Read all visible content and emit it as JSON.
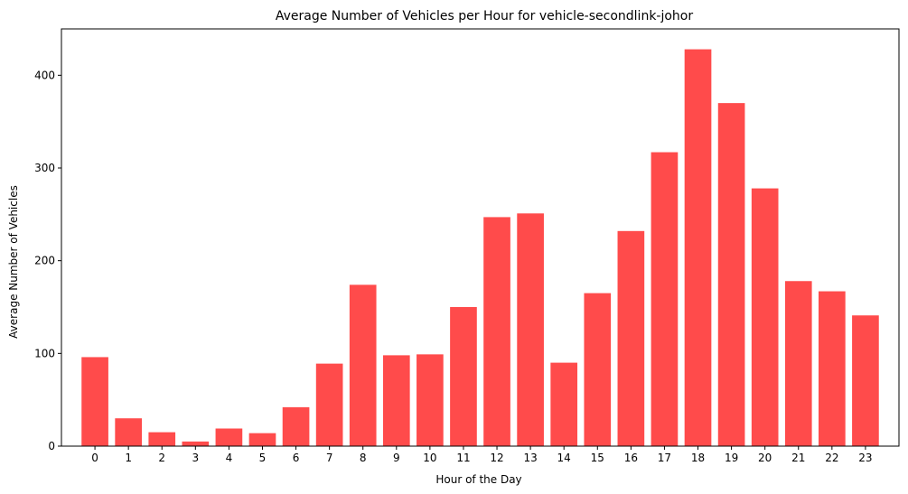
{
  "chart_data": {
    "type": "bar",
    "title": "Average Number of Vehicles per Hour for vehicle-secondlink-johor",
    "xlabel": "Hour of the Day",
    "ylabel": "Average Number of Vehicles",
    "categories": [
      "0",
      "1",
      "2",
      "3",
      "4",
      "5",
      "6",
      "7",
      "8",
      "9",
      "10",
      "11",
      "12",
      "13",
      "14",
      "15",
      "16",
      "17",
      "18",
      "19",
      "20",
      "21",
      "22",
      "23"
    ],
    "values": [
      96,
      30,
      15,
      5,
      19,
      14,
      42,
      89,
      174,
      98,
      99,
      150,
      247,
      251,
      90,
      165,
      232,
      317,
      428,
      370,
      278,
      178,
      167,
      141
    ],
    "ylim": [
      0,
      450
    ],
    "yticks": [
      0,
      100,
      200,
      300,
      400
    ],
    "grid": false,
    "bar_color": "#ff4b4b"
  }
}
